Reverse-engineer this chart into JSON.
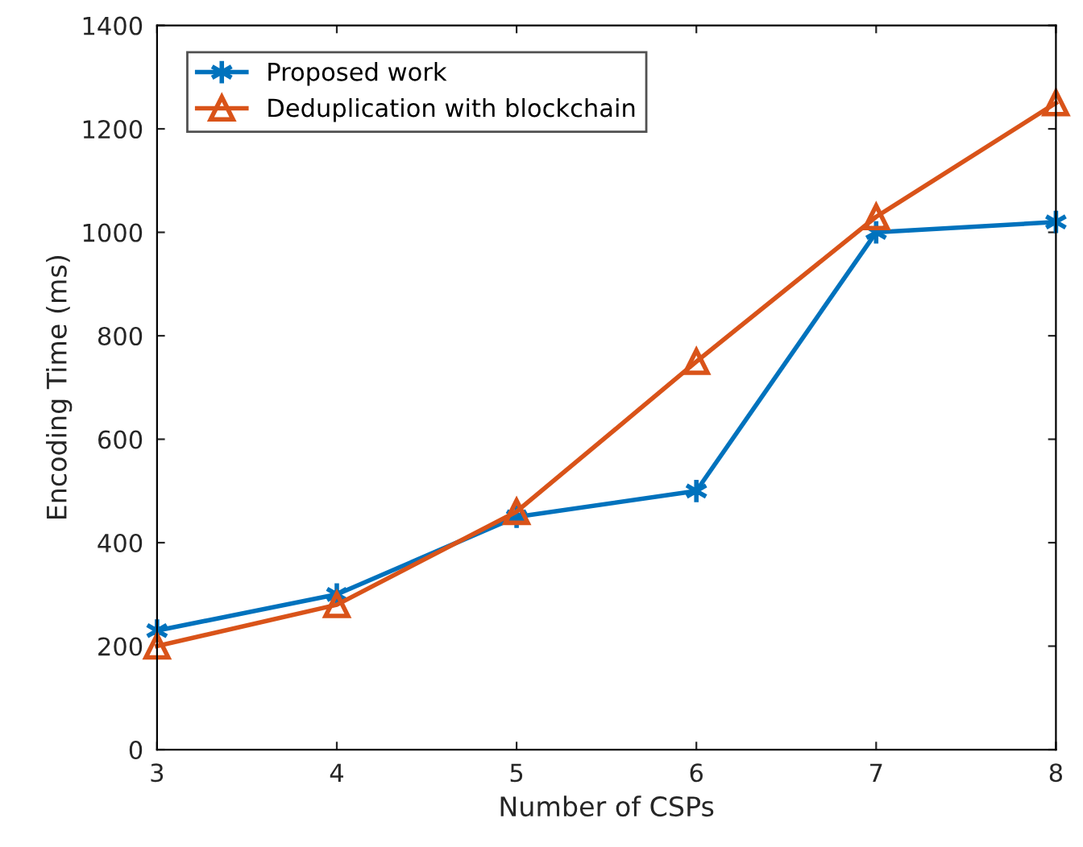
{
  "chart_data": {
    "type": "line",
    "xlabel": "Number of CSPs",
    "ylabel": "Encoding Time (ms)",
    "x": [
      3,
      4,
      5,
      6,
      7,
      8
    ],
    "series": [
      {
        "name": "Proposed work",
        "color": "#0072bd",
        "marker": "cross",
        "values": [
          230,
          300,
          450,
          500,
          1000,
          1020
        ]
      },
      {
        "name": "Deduplication with blockchain",
        "color": "#d95319",
        "marker": "triangle",
        "values": [
          200,
          280,
          460,
          750,
          1030,
          1250
        ]
      }
    ],
    "xlim": [
      3,
      8
    ],
    "xticks": [
      3,
      4,
      5,
      6,
      7,
      8
    ],
    "ylim": [
      0,
      1400
    ],
    "yticks": [
      0,
      200,
      400,
      600,
      800,
      1000,
      1200,
      1400
    ],
    "grid": false,
    "legend": "top left",
    "line_style": "solid"
  }
}
